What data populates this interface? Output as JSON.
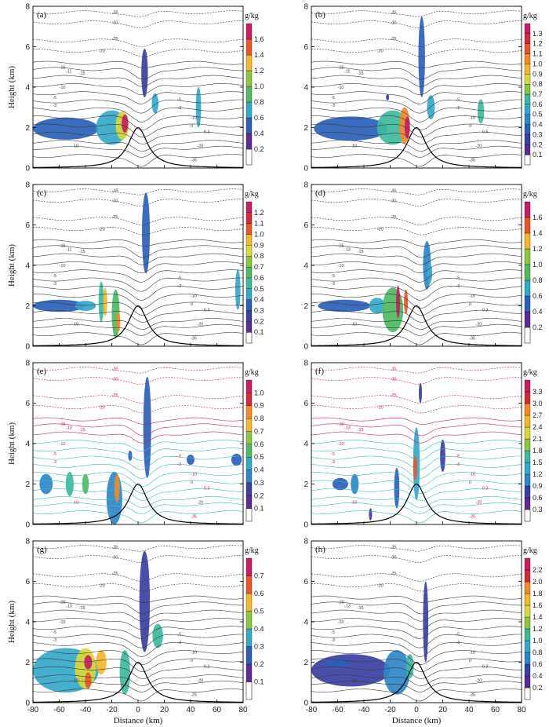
{
  "chart_data": [
    {
      "panel": "(a)",
      "type": "contour",
      "xlabel": "",
      "ylabel": "Height (km)",
      "unit": "g/kg",
      "xlim": [
        -80,
        80
      ],
      "ylim": [
        0,
        8
      ],
      "x_ticks": [],
      "y_ticks": [
        0,
        2,
        4,
        6,
        8
      ],
      "colorbar": [
        "0.2",
        "0.4",
        "0.6",
        "0.8",
        "1.0",
        "1.2",
        "1.4",
        "1.6"
      ],
      "contour_labels": [
        "-35",
        "-30",
        "-25",
        "-20",
        "-15",
        "-11",
        "-15",
        "-10",
        "-5",
        "-3",
        "-10",
        "-5",
        "-3",
        "-10",
        "-20",
        "-35",
        "0",
        "0.3"
      ],
      "contour_color": "#3a3a3a",
      "blobs": [
        {
          "x": -55,
          "y": 1.95,
          "rx": 25,
          "ry": 0.55,
          "v": 0.3
        },
        {
          "x": -20,
          "y": 2.0,
          "rx": 12,
          "ry": 0.85,
          "v": 0.6
        },
        {
          "x": -12,
          "y": 2.1,
          "rx": 5,
          "ry": 0.7,
          "v": 1.0
        },
        {
          "x": -10,
          "y": 2.2,
          "rx": 2.5,
          "ry": 0.45,
          "v": 1.6
        },
        {
          "x": 5,
          "y": 4.7,
          "rx": 2.5,
          "ry": 1.2,
          "v": 0.2
        },
        {
          "x": 13,
          "y": 3.2,
          "rx": 2.5,
          "ry": 0.5,
          "v": 0.5
        },
        {
          "x": 46,
          "y": 3.0,
          "rx": 2,
          "ry": 1.0,
          "v": 0.6
        }
      ]
    },
    {
      "panel": "(b)",
      "type": "contour",
      "xlabel": "",
      "ylabel": "",
      "unit": "g/kg",
      "xlim": [
        -80,
        80
      ],
      "ylim": [
        0,
        8
      ],
      "x_ticks": [],
      "y_ticks": [
        0,
        2,
        4,
        6,
        8
      ],
      "colorbar": [
        "0.1",
        "0.2",
        "0.3",
        "0.4",
        "0.5",
        "0.6",
        "0.7",
        "0.8",
        "0.9",
        "1.0",
        "1.1",
        "1.2",
        "1.3"
      ],
      "contour_labels": [
        "-35",
        "-30",
        "-25",
        "-20",
        "-15",
        "-11",
        "-15",
        "-10",
        "-5",
        "-3",
        "-10",
        "-5",
        "-3",
        "-10",
        "-20",
        "-35",
        "0",
        "0.5"
      ],
      "contour_color": "#3a3a3a",
      "blobs": [
        {
          "x": -50,
          "y": 1.95,
          "rx": 28,
          "ry": 0.6,
          "v": 0.2
        },
        {
          "x": -18,
          "y": 2.0,
          "rx": 12,
          "ry": 0.85,
          "v": 0.5
        },
        {
          "x": -9,
          "y": 2.1,
          "rx": 4,
          "ry": 0.9,
          "v": 1.0
        },
        {
          "x": -7,
          "y": 2.0,
          "rx": 2,
          "ry": 0.55,
          "v": 1.3
        },
        {
          "x": 4,
          "y": 5.5,
          "rx": 2.5,
          "ry": 2.0,
          "v": 0.2
        },
        {
          "x": 11,
          "y": 3.0,
          "rx": 3,
          "ry": 0.6,
          "v": 0.4
        },
        {
          "x": 49,
          "y": 2.8,
          "rx": 2.5,
          "ry": 0.6,
          "v": 0.5
        },
        {
          "x": -22,
          "y": 3.5,
          "rx": 1.2,
          "ry": 0.15,
          "v": 0.1
        }
      ]
    },
    {
      "panel": "(c)",
      "type": "contour",
      "xlabel": "",
      "ylabel": "Height (km)",
      "unit": "g/kg",
      "xlim": [
        -80,
        80
      ],
      "ylim": [
        0,
        8
      ],
      "x_ticks": [],
      "y_ticks": [
        0,
        2,
        4,
        6,
        8
      ],
      "colorbar": [
        "0.1",
        "0.2",
        "0.3",
        "0.4",
        "0.5",
        "0.6",
        "0.7",
        "0.8",
        "0.9",
        "1.0",
        "1.1",
        "1.2"
      ],
      "contour_labels": [
        "-35",
        "-30",
        "-25",
        "-20",
        "-15",
        "-11",
        "-15",
        "-10",
        "-5",
        "-3",
        "-10",
        "-5",
        "-3",
        "-10",
        "-20",
        "-35",
        "0",
        "0.3"
      ],
      "contour_color": "#3a3a3a",
      "blobs": [
        {
          "x": -60,
          "y": 2.0,
          "rx": 20,
          "ry": 0.3,
          "v": 0.2
        },
        {
          "x": -40,
          "y": 2.0,
          "rx": 8,
          "ry": 0.25,
          "v": 0.4
        },
        {
          "x": -28,
          "y": 2.2,
          "rx": 2,
          "ry": 1.0,
          "v": 0.5
        },
        {
          "x": -17,
          "y": 1.6,
          "rx": 3,
          "ry": 1.2,
          "v": 0.6
        },
        {
          "x": -15,
          "y": 1.2,
          "rx": 1.5,
          "ry": 0.5,
          "v": 1.0
        },
        {
          "x": 6,
          "y": 5.6,
          "rx": 3,
          "ry": 2.0,
          "v": 0.2
        },
        {
          "x": 76,
          "y": 2.8,
          "rx": 2,
          "ry": 1.0,
          "v": 0.4
        },
        {
          "x": -25,
          "y": 2.2,
          "rx": 1.5,
          "ry": 0.7,
          "v": 0.9
        }
      ]
    },
    {
      "panel": "(d)",
      "type": "contour",
      "xlabel": "",
      "ylabel": "",
      "unit": "g/kg",
      "xlim": [
        -80,
        80
      ],
      "ylim": [
        0,
        8
      ],
      "x_ticks": [],
      "y_ticks": [
        0,
        2,
        4,
        6,
        8
      ],
      "colorbar": [
        "0.2",
        "0.4",
        "0.6",
        "0.8",
        "1.0",
        "1.2",
        "1.4",
        "1.6"
      ],
      "contour_labels": [
        "-35",
        "-30",
        "-25",
        "-20",
        "-15",
        "-13",
        "-15",
        "-10",
        "-5",
        "-3",
        "-10",
        "-5",
        "-3",
        "-10",
        "-20",
        "-35",
        "0",
        "0.3"
      ],
      "contour_color": "#3a3a3a",
      "blobs": [
        {
          "x": -55,
          "y": 2.0,
          "rx": 20,
          "ry": 0.3,
          "v": 0.3
        },
        {
          "x": -30,
          "y": 2.0,
          "rx": 6,
          "ry": 0.4,
          "v": 0.5
        },
        {
          "x": -18,
          "y": 1.8,
          "rx": 8,
          "ry": 1.1,
          "v": 0.8
        },
        {
          "x": -14,
          "y": 2.2,
          "rx": 1.5,
          "ry": 0.8,
          "v": 1.6
        },
        {
          "x": -8,
          "y": 2.2,
          "rx": 1.5,
          "ry": 0.6,
          "v": 1.4
        },
        {
          "x": 8,
          "y": 4.0,
          "rx": 3,
          "ry": 1.2,
          "v": 0.4
        },
        {
          "x": 10,
          "y": 3.6,
          "rx": 2,
          "ry": 0.5,
          "v": 0.6
        }
      ]
    },
    {
      "panel": "(e)",
      "type": "contour",
      "xlabel": "",
      "ylabel": "Height (km)",
      "unit": "g/kg",
      "xlim": [
        -80,
        80
      ],
      "ylim": [
        0,
        8
      ],
      "x_ticks": [],
      "y_ticks": [
        0,
        2,
        4,
        6,
        8
      ],
      "colorbar": [
        "0.1",
        "0.2",
        "0.3",
        "0.4",
        "0.5",
        "0.6",
        "0.7",
        "0.8",
        "0.9",
        "1.0"
      ],
      "contour_labels": [
        "-35",
        "-30",
        "-25",
        "-20",
        "-15",
        "-13",
        "-15",
        "-10",
        "-5",
        "-3",
        "-10",
        "-5",
        "-3",
        "-10",
        "-20",
        "-35",
        "0",
        "0.3"
      ],
      "contour_color": "#cc2244",
      "contour_color2": "#33bbbb",
      "blobs": [
        {
          "x": -70,
          "y": 2.0,
          "rx": 5,
          "ry": 0.5,
          "v": 0.3
        },
        {
          "x": -52,
          "y": 2.0,
          "rx": 3,
          "ry": 0.6,
          "v": 0.4
        },
        {
          "x": -40,
          "y": 2.0,
          "rx": 2.5,
          "ry": 0.5,
          "v": 0.5
        },
        {
          "x": -18,
          "y": 1.3,
          "rx": 6,
          "ry": 1.3,
          "v": 0.3
        },
        {
          "x": -16,
          "y": 1.8,
          "rx": 2,
          "ry": 0.7,
          "v": 0.8
        },
        {
          "x": 7,
          "y": 4.8,
          "rx": 3,
          "ry": 2.5,
          "v": 0.2
        },
        {
          "x": 40,
          "y": 3.2,
          "rx": 3,
          "ry": 0.25,
          "v": 0.2
        },
        {
          "x": 75,
          "y": 3.2,
          "rx": 4,
          "ry": 0.3,
          "v": 0.2
        },
        {
          "x": -6,
          "y": 3.4,
          "rx": 1.5,
          "ry": 0.25,
          "v": 0.2
        }
      ]
    },
    {
      "panel": "(f)",
      "type": "contour",
      "xlabel": "",
      "ylabel": "",
      "unit": "g/kg",
      "xlim": [
        -80,
        80
      ],
      "ylim": [
        0,
        8
      ],
      "x_ticks": [],
      "y_ticks": [
        0,
        2,
        4,
        6,
        8
      ],
      "colorbar": [
        "0.3",
        "0.6",
        "0.9",
        "1.2",
        "1.5",
        "1.8",
        "2.1",
        "2.4",
        "2.7",
        "3.0",
        "3.3"
      ],
      "contour_labels": [
        "-35",
        "-30",
        "-25",
        "-20",
        "-15",
        "-13",
        "-15",
        "-10",
        "-5",
        "-3",
        "-10",
        "-5",
        "-3",
        "-10",
        "-20",
        "-35",
        "0",
        "0.3"
      ],
      "contour_color": "#cc2244",
      "contour_color2": "#33bbbb",
      "blobs": [
        {
          "x": -58,
          "y": 2.0,
          "rx": 6,
          "ry": 0.3,
          "v": 0.6
        },
        {
          "x": -47,
          "y": 2.0,
          "rx": 3,
          "ry": 0.5,
          "v": 1.0
        },
        {
          "x": -15,
          "y": 1.8,
          "rx": 2,
          "ry": 1.0,
          "v": 0.6
        },
        {
          "x": 0,
          "y": 3.0,
          "rx": 2.5,
          "ry": 1.8,
          "v": 1.2
        },
        {
          "x": -1,
          "y": 2.8,
          "rx": 1.5,
          "ry": 0.6,
          "v": 3.0
        },
        {
          "x": 20,
          "y": 3.4,
          "rx": 2,
          "ry": 0.8,
          "v": 0.3
        },
        {
          "x": 3,
          "y": 6.5,
          "rx": 1.2,
          "ry": 0.5,
          "v": 0.3
        },
        {
          "x": -35,
          "y": 0.5,
          "rx": 1.2,
          "ry": 0.3,
          "v": 0.3
        }
      ]
    },
    {
      "panel": "(g)",
      "type": "contour",
      "xlabel": "Distance (km)",
      "ylabel": "Height (km)",
      "unit": "g/kg",
      "xlim": [
        -80,
        80
      ],
      "ylim": [
        0,
        8
      ],
      "x_ticks": [
        -80,
        -60,
        -40,
        -20,
        0,
        20,
        40,
        60,
        80
      ],
      "y_ticks": [
        0,
        2,
        4,
        6,
        8
      ],
      "colorbar": [
        "0.1",
        "0.2",
        "0.3",
        "0.4",
        "0.5",
        "0.6",
        "0.7"
      ],
      "contour_labels": [
        "-35",
        "-30",
        "-25",
        "-20",
        "-15",
        "-13",
        "-15",
        "-10",
        "-5",
        "-3",
        "-10",
        "-5",
        "-3",
        "-10",
        "-20",
        "-25",
        "0",
        "0.2"
      ],
      "contour_color": "#3a3a3a",
      "blobs": [
        {
          "x": -55,
          "y": 1.6,
          "rx": 25,
          "ry": 1.1,
          "v": 0.25
        },
        {
          "x": -40,
          "y": 1.7,
          "rx": 8,
          "ry": 1.0,
          "v": 0.45
        },
        {
          "x": -38,
          "y": 2.0,
          "rx": 3,
          "ry": 0.35,
          "v": 0.7
        },
        {
          "x": -38,
          "y": 1.1,
          "rx": 2.5,
          "ry": 0.4,
          "v": 0.6
        },
        {
          "x": -28,
          "y": 2.0,
          "rx": 4,
          "ry": 0.6,
          "v": 0.5
        },
        {
          "x": -10,
          "y": 1.5,
          "rx": 4,
          "ry": 1.1,
          "v": 0.3
        },
        {
          "x": 5,
          "y": 5.0,
          "rx": 4,
          "ry": 2.5,
          "v": 0.1
        },
        {
          "x": 15,
          "y": 3.3,
          "rx": 4,
          "ry": 0.6,
          "v": 0.3
        }
      ]
    },
    {
      "panel": "(h)",
      "type": "contour",
      "xlabel": "Distance (km)",
      "ylabel": "",
      "unit": "g/kg",
      "xlim": [
        -80,
        80
      ],
      "ylim": [
        0,
        8
      ],
      "x_ticks": [
        -80,
        -60,
        -40,
        -20,
        0,
        20,
        40,
        60,
        80
      ],
      "y_ticks": [
        0,
        2,
        4,
        6,
        8
      ],
      "colorbar": [
        "0.2",
        "0.4",
        "0.6",
        "0.8",
        "1.0",
        "1.2",
        "1.4",
        "1.6",
        "1.8",
        "2.0",
        "2.2"
      ],
      "contour_labels": [
        "-35",
        "-30",
        "-25",
        "-20",
        "-15",
        "-13",
        "-15",
        "-10",
        "-5",
        "-3",
        "-10",
        "-5",
        "-3",
        "-10",
        "-20",
        "-35",
        "0",
        "0.3"
      ],
      "contour_color": "#3a3a3a",
      "blobs": [
        {
          "x": -50,
          "y": 1.6,
          "rx": 30,
          "ry": 0.8,
          "v": 0.2
        },
        {
          "x": -15,
          "y": 1.5,
          "rx": 10,
          "ry": 1.1,
          "v": 0.6
        },
        {
          "x": -5,
          "y": 1.8,
          "rx": 3,
          "ry": 0.6,
          "v": 1.0
        },
        {
          "x": 7,
          "y": 4.0,
          "rx": 2,
          "ry": 2.0,
          "v": 0.2
        },
        {
          "x": -60,
          "y": 1.95,
          "rx": 10,
          "ry": 0.2,
          "v": 0.4
        }
      ]
    }
  ]
}
